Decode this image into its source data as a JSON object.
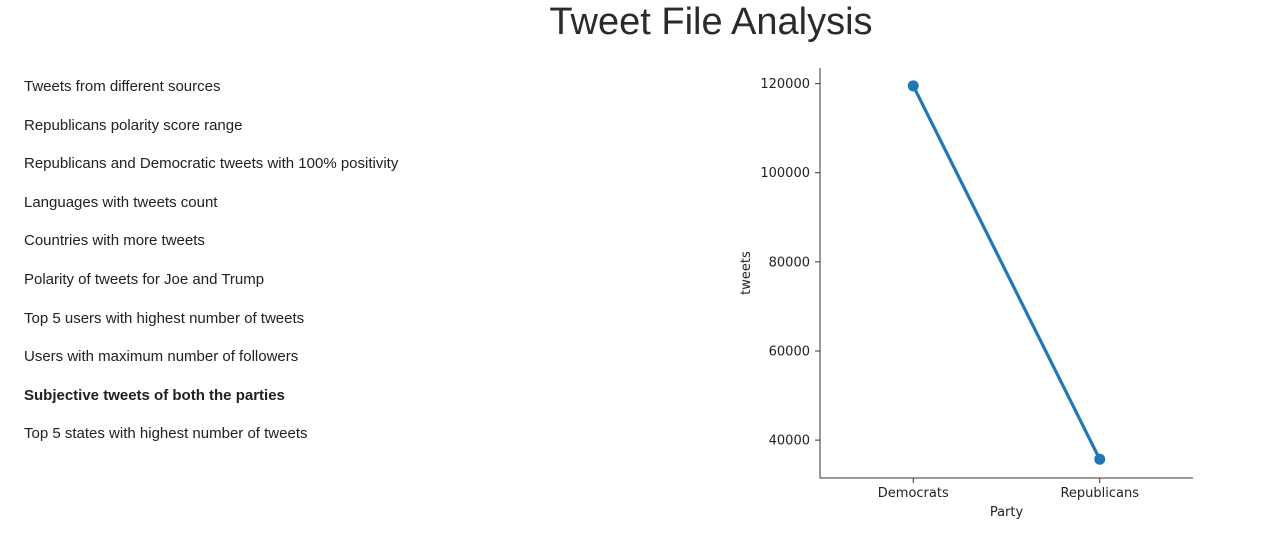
{
  "page": {
    "title": "Tweet File Analysis"
  },
  "menu": {
    "items": [
      {
        "label": "Tweets from different sources",
        "active": false
      },
      {
        "label": "Republicans polarity score range",
        "active": false
      },
      {
        "label": "Republicans and Democratic tweets with 100% positivity",
        "active": false
      },
      {
        "label": "Languages with tweets count",
        "active": false
      },
      {
        "label": "Countries with more tweets",
        "active": false
      },
      {
        "label": "Polarity of tweets for Joe and Trump",
        "active": false
      },
      {
        "label": "Top 5 users with highest number of tweets",
        "active": false
      },
      {
        "label": "Users with maximum number of followers",
        "active": false
      },
      {
        "label": "Subjective tweets of both the parties",
        "active": true
      },
      {
        "label": "Top 5 states with highest number of tweets",
        "active": false
      }
    ]
  },
  "chart_data": {
    "type": "line",
    "categories": [
      "Democrats",
      "Republicans"
    ],
    "values": [
      119500,
      35700
    ],
    "xlabel": "Party",
    "ylabel": "tweets",
    "yticks": [
      40000,
      60000,
      80000,
      100000,
      120000
    ],
    "ylim": [
      31500,
      123500
    ],
    "grid": false,
    "color": "#1f77b4",
    "axis_color": "#333333"
  }
}
